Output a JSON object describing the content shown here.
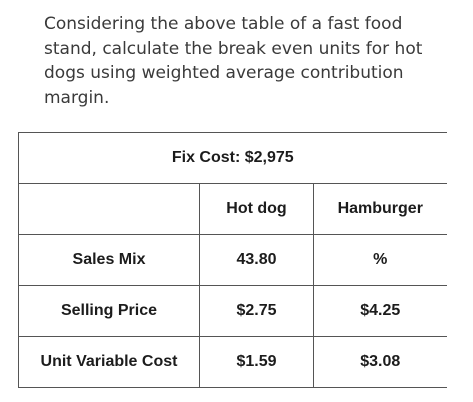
{
  "question": "Considering the above table of a fast food stand, calculate the break even units for hot dogs using weighted average contribution margin.",
  "table": {
    "fix_cost": "Fix Cost: $2,975",
    "headers": [
      "",
      "Hot dog",
      "Hamburger"
    ],
    "rows": [
      {
        "label": "Sales Mix",
        "hot_dog": "43.80",
        "hamburger": "%"
      },
      {
        "label": "Selling Price",
        "hot_dog": "$2.75",
        "hamburger": "$4.25"
      },
      {
        "label": "Unit Variable Cost",
        "hot_dog": "$1.59",
        "hamburger": "$3.08"
      }
    ]
  }
}
